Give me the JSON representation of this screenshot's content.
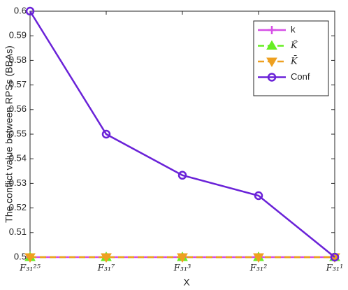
{
  "chart_data": {
    "type": "line",
    "y_label": "The conflict value between RPSs (BBAs)",
    "x_label": "X",
    "categories": [
      "F₃₁²⁵",
      "F₃₁⁷",
      "F₃₁³",
      "F₃₁²",
      "F₃₁¹"
    ],
    "series": [
      {
        "name": "k",
        "color": "#d64fe6",
        "line_style": "solid",
        "marker": "plus",
        "values": [
          0.5,
          0.5,
          0.5,
          0.5,
          0.5
        ]
      },
      {
        "name": "K̃",
        "color": "#66ee22",
        "line_style": "dashed",
        "marker": "triangle-up",
        "values": [
          0.5,
          0.5,
          0.5,
          0.5,
          0.5
        ]
      },
      {
        "name": "K̄",
        "color": "#eea020",
        "line_style": "dashed",
        "marker": "triangle-down",
        "values": [
          0.5,
          0.5,
          0.5,
          0.5,
          0.5
        ]
      },
      {
        "name": "Conf",
        "color": "#6a22d8",
        "line_style": "solid",
        "marker": "circle",
        "values": [
          0.6,
          0.55,
          0.5333,
          0.525,
          0.5
        ]
      }
    ],
    "ylim": [
      0.5,
      0.6
    ],
    "yticks": [
      0.5,
      0.51,
      0.52,
      0.53,
      0.54,
      0.55,
      0.56,
      0.57,
      0.58,
      0.59,
      0.6
    ],
    "grid": false,
    "legend": "top-right"
  }
}
